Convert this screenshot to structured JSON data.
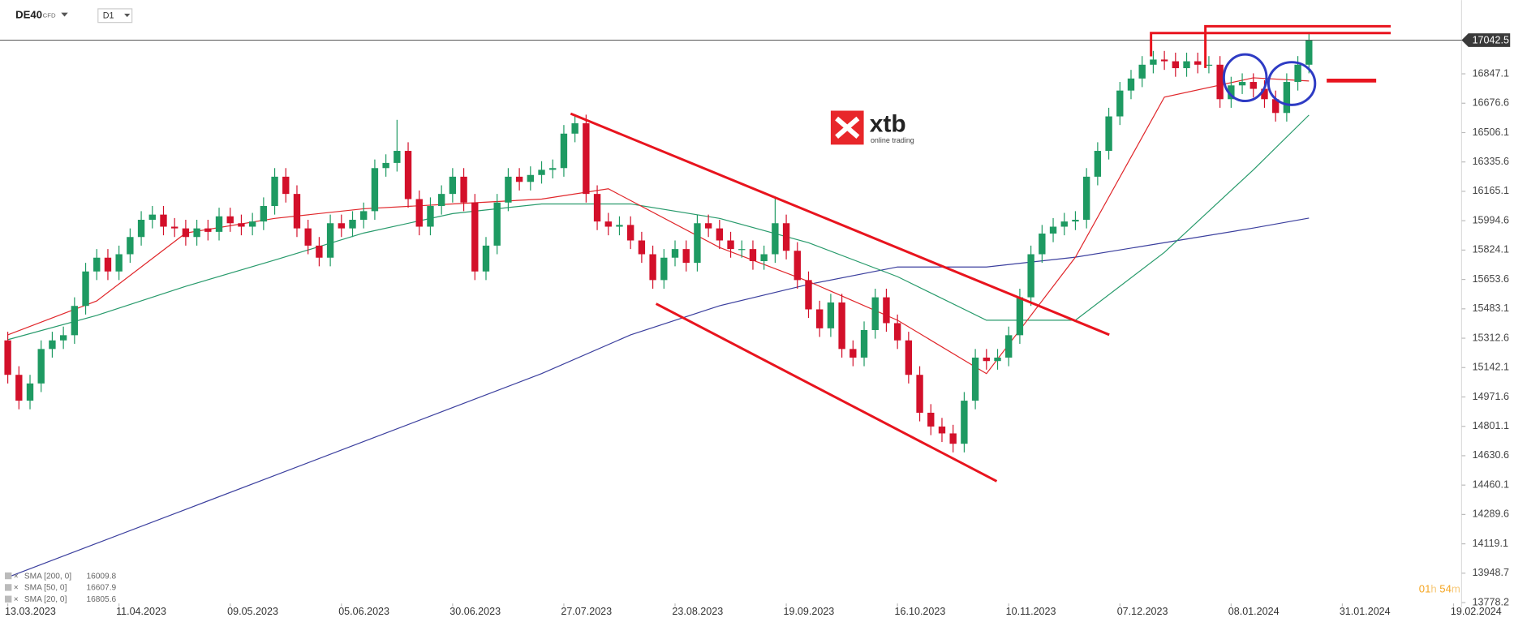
{
  "header": {
    "symbol": "DE40",
    "instrument": "CFD",
    "interval": "D1"
  },
  "timer": {
    "hours": "01",
    "hours_unit": "h",
    "minutes": "54",
    "minutes_unit": "m"
  },
  "logo": {
    "name": "xtb",
    "tagline": "online trading"
  },
  "chart_data": {
    "type": "candlestick",
    "up_color": "#1e9a62",
    "down_color": "#d3102a",
    "open": [
      15300,
      15100,
      14950,
      15050,
      15250,
      15300,
      15330,
      15500,
      15700,
      15780,
      15700,
      15800,
      15900,
      16000,
      16030,
      15960,
      15950,
      15900,
      15950,
      15930,
      16020,
      15980,
      15960,
      15990,
      16080,
      16250,
      16150,
      15950,
      15850,
      15780,
      15980,
      15950,
      16000,
      16050,
      16300,
      16330,
      16400,
      16120,
      15960,
      16080,
      16150,
      16250,
      16100,
      15700,
      15850,
      16100,
      16250,
      16220,
      16260,
      16290,
      16300,
      16500,
      16560,
      16150,
      15990,
      15960,
      15970,
      15880,
      15800,
      15650,
      15780,
      15830,
      15750,
      15980,
      15950,
      15880,
      15830,
      15830,
      15760,
      15800,
      15980,
      15820,
      15650,
      15480,
      15370,
      15520,
      15250,
      15200,
      15360,
      15550,
      15400,
      15300,
      15100,
      14880,
      14800,
      14760,
      14700,
      14950,
      15200,
      15180,
      15200,
      15330,
      15550,
      15800,
      15920,
      15960,
      15990,
      16000,
      16250,
      16400,
      16600,
      16750,
      16820,
      16900,
      16930,
      16920,
      16880,
      16920,
      16900,
      16900,
      16700,
      16780,
      16800,
      16760,
      16700,
      16620,
      16800,
      16900
    ],
    "high": [
      15350,
      15150,
      15100,
      15300,
      15350,
      15380,
      15550,
      15750,
      15830,
      15830,
      15850,
      15950,
      16050,
      16080,
      16080,
      16010,
      16000,
      16000,
      16000,
      16070,
      16070,
      16030,
      16040,
      16130,
      16300,
      16300,
      16200,
      16000,
      15900,
      16030,
      16030,
      16050,
      16100,
      16350,
      16380,
      16580,
      16450,
      16170,
      16130,
      16200,
      16300,
      16300,
      16150,
      15900,
      16150,
      16300,
      16300,
      16310,
      16340,
      16350,
      16550,
      16610,
      16610,
      16200,
      16040,
      16020,
      16020,
      15930,
      15850,
      15830,
      15880,
      15880,
      16030,
      16030,
      16000,
      15930,
      15880,
      15880,
      15850,
      16130,
      16030,
      15870,
      15700,
      15530,
      15570,
      15570,
      15300,
      15410,
      15600,
      15600,
      15450,
      15350,
      15150,
      14930,
      14850,
      14810,
      15000,
      15250,
      15250,
      15250,
      15380,
      15600,
      15850,
      15970,
      16010,
      16040,
      16050,
      16300,
      16450,
      16650,
      16800,
      16870,
      16950,
      16980,
      16980,
      16970,
      16970,
      16970,
      16950,
      16950,
      16830,
      16850,
      16850,
      16810,
      16750,
      16850,
      16950,
      17090
    ],
    "low": [
      15050,
      14900,
      14900,
      15000,
      15200,
      15250,
      15280,
      15450,
      15650,
      15650,
      15650,
      15750,
      15850,
      15950,
      15910,
      15900,
      15850,
      15850,
      15880,
      15880,
      15930,
      15910,
      15910,
      15940,
      16030,
      16100,
      15900,
      15800,
      15730,
      15730,
      15900,
      15900,
      15950,
      16000,
      16250,
      16280,
      16070,
      15910,
      15910,
      16030,
      16100,
      16050,
      15650,
      15650,
      15800,
      16050,
      16170,
      16170,
      16210,
      16240,
      16250,
      16450,
      16100,
      15940,
      15910,
      15910,
      15830,
      15750,
      15600,
      15600,
      15730,
      15700,
      15700,
      15900,
      15830,
      15780,
      15780,
      15710,
      15710,
      15750,
      15770,
      15600,
      15430,
      15320,
      15320,
      15200,
      15150,
      15150,
      15310,
      15350,
      15250,
      15050,
      14830,
      14750,
      14710,
      14650,
      14650,
      14900,
      15130,
      15130,
      15150,
      15280,
      15500,
      15750,
      15870,
      15910,
      15940,
      15950,
      16200,
      16350,
      16550,
      16700,
      16770,
      16850,
      16870,
      16830,
      16830,
      16850,
      16850,
      16650,
      16650,
      16730,
      16710,
      16650,
      16570,
      16570,
      16750,
      16850
    ],
    "close": [
      15100,
      14950,
      15050,
      15250,
      15300,
      15330,
      15500,
      15700,
      15780,
      15700,
      15800,
      15900,
      16000,
      16030,
      15960,
      15950,
      15900,
      15950,
      15930,
      16020,
      15980,
      15960,
      15990,
      16080,
      16250,
      16150,
      15950,
      15850,
      15780,
      15980,
      15950,
      16000,
      16050,
      16300,
      16330,
      16400,
      16120,
      15960,
      16080,
      16150,
      16250,
      16100,
      15700,
      15850,
      16100,
      16250,
      16220,
      16260,
      16290,
      16300,
      16500,
      16560,
      16150,
      15990,
      15960,
      15970,
      15880,
      15800,
      15650,
      15780,
      15830,
      15750,
      15980,
      15950,
      15880,
      15830,
      15830,
      15760,
      15800,
      15980,
      15820,
      15650,
      15480,
      15370,
      15520,
      15250,
      15200,
      15360,
      15550,
      15400,
      15300,
      15100,
      14880,
      14800,
      14760,
      14700,
      14950,
      15200,
      15180,
      15200,
      15330,
      15550,
      15800,
      15920,
      15960,
      15990,
      16000,
      16250,
      16400,
      16600,
      16750,
      16820,
      16900,
      16930,
      16920,
      16880,
      16920,
      16900,
      16900,
      16700,
      16780,
      16800,
      16760,
      16700,
      16620,
      16800,
      16900,
      17042.5
    ],
    "indicators": [
      {
        "name": "SMA [200, 0]",
        "color": "#3b3f9e",
        "x": [
          0,
          8,
          16,
          24,
          32,
          40,
          48,
          56,
          64,
          72,
          80,
          88,
          96,
          104,
          112,
          117
        ],
        "values": [
          13925,
          14122,
          14319,
          14516,
          14713,
          14910,
          15107,
          15332,
          15501,
          15625,
          15726,
          15726,
          15783,
          15867,
          15952,
          16009.8
        ]
      },
      {
        "name": "SMA [50, 0]",
        "color": "#279a6b",
        "x": [
          0,
          8,
          16,
          24,
          32,
          40,
          48,
          56,
          64,
          72,
          80,
          88,
          96,
          104,
          112,
          117
        ],
        "values": [
          15304,
          15445,
          15614,
          15766,
          15923,
          16036,
          16092,
          16092,
          16008,
          15867,
          15670,
          15417,
          15417,
          15811,
          16290,
          16607.9
        ]
      },
      {
        "name": "SMA [20, 0]",
        "color": "#e0262a",
        "x": [
          0,
          8,
          16,
          24,
          32,
          40,
          48,
          54,
          64,
          72,
          80,
          88,
          96,
          104,
          112,
          117
        ],
        "values": [
          15332,
          15529,
          15923,
          16008,
          16064,
          16092,
          16120,
          16180,
          15839,
          15642,
          15417,
          15107,
          15783,
          16712,
          16824,
          16805.6
        ]
      }
    ],
    "xlim": [
      -0.7,
      130.2
    ],
    "xticks": [
      {
        "value": 0,
        "label": "13.03.2023"
      },
      {
        "value": 10,
        "label": "11.04.2023"
      },
      {
        "value": 20,
        "label": "09.05.2023"
      },
      {
        "value": 30,
        "label": "05.06.2023"
      },
      {
        "value": 40,
        "label": "30.06.2023"
      },
      {
        "value": 50,
        "label": "27.07.2023"
      },
      {
        "value": 60,
        "label": "23.08.2023"
      },
      {
        "value": 70,
        "label": "19.09.2023"
      },
      {
        "value": 80,
        "label": "16.10.2023"
      },
      {
        "value": 90,
        "label": "10.11.2023"
      },
      {
        "value": 100,
        "label": "07.12.2023"
      },
      {
        "value": 110,
        "label": "08.01.2024"
      },
      {
        "value": 120,
        "label": "31.01.2024"
      },
      {
        "value": 130,
        "label": "19.02.2024"
      }
    ],
    "ylim": [
      13773,
      17275
    ],
    "yticks": [
      13778.2,
      13948.7,
      14119.1,
      14289.6,
      14460.1,
      14630.6,
      14801.1,
      14971.6,
      15142.1,
      15312.6,
      15483.1,
      15653.6,
      15824.1,
      15994.6,
      16165.1,
      16335.6,
      16506.1,
      16676.6,
      16847.1
    ]
  }
}
